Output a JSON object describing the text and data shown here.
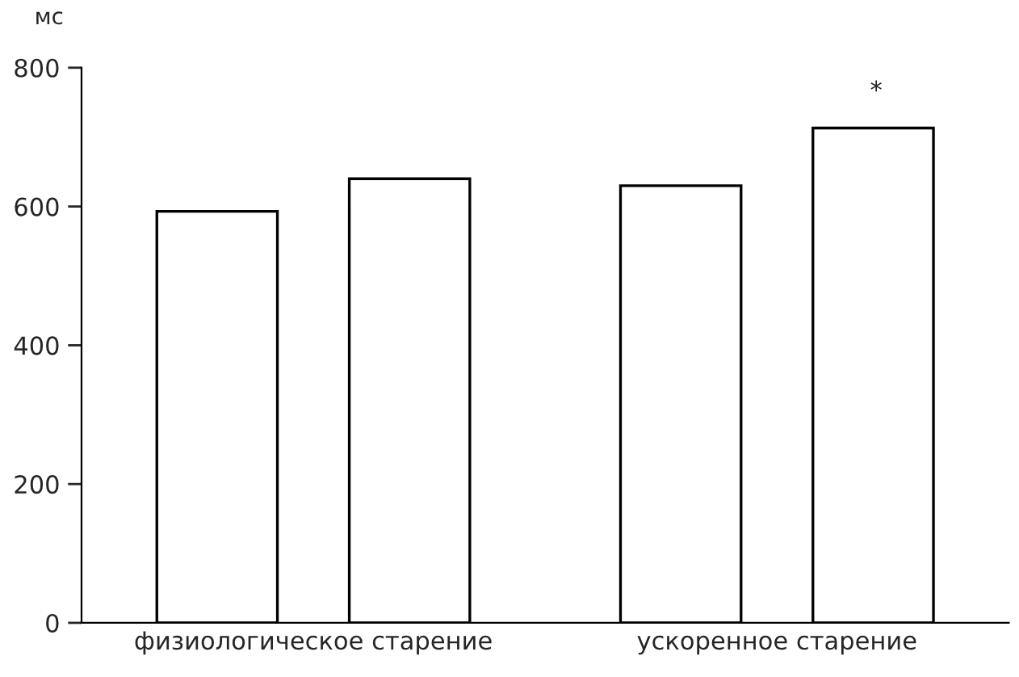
{
  "chart_data": {
    "type": "bar",
    "ylabel": "мс",
    "categories": [
      "физиологическое старение",
      "ускоренное старение"
    ],
    "series": [
      {
        "color": "#ffffff",
        "values": [
          593,
          630
        ]
      },
      {
        "color": "#ffffff",
        "values": [
          640,
          713
        ]
      }
    ],
    "ylim": [
      0,
      800
    ],
    "yticks": [
      0,
      200,
      400,
      600,
      800
    ],
    "grid": false,
    "legend": false,
    "annotations": [
      "*"
    ]
  }
}
